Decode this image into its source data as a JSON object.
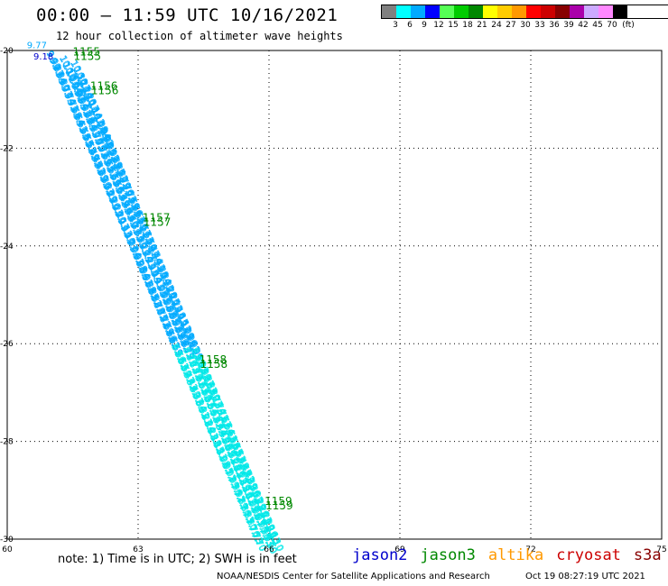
{
  "header": {
    "title": "00:00 – 11:59 UTC 10/16/2021",
    "subtitle": "12 hour collection of altimeter wave heights"
  },
  "legend": {
    "colors": [
      "#808080",
      "#00ffff",
      "#00aaff",
      "#0000ff",
      "#55ff55",
      "#00cc00",
      "#008800",
      "#ffff00",
      "#ffcc00",
      "#ff9900",
      "#ff0000",
      "#cc0000",
      "#880000",
      "#aa00aa",
      "#ccaaff",
      "#ff88ff",
      "#000000"
    ],
    "labels": [
      "3",
      "6",
      "9",
      "12",
      "15",
      "18",
      "21",
      "24",
      "27",
      "30",
      "33",
      "36",
      "39",
      "42",
      "45",
      "70",
      "(ft)"
    ]
  },
  "map": {
    "lon_range": [
      60,
      75
    ],
    "lat_range": [
      -30,
      -20
    ],
    "lon_ticks": [
      "60",
      "63",
      "66",
      "69",
      "72",
      "75"
    ],
    "lat_ticks": [
      "-20",
      "-22",
      "-24",
      "-26",
      "-28",
      "-30"
    ],
    "time_labels": [
      {
        "text": "1155",
        "lon": 61.5,
        "lat": -20.1
      },
      {
        "text": "1156",
        "lon": 61.9,
        "lat": -20.8
      },
      {
        "text": "1157",
        "lon": 63.1,
        "lat": -23.5
      },
      {
        "text": "1158",
        "lon": 64.4,
        "lat": -26.4
      },
      {
        "text": "1159",
        "lon": 65.9,
        "lat": -29.3
      }
    ],
    "track_start_labels": [
      "9.77",
      "9.18"
    ]
  },
  "footer": {
    "note": "note:  1) Time is in UTC;  2) SWH is in feet",
    "missions": [
      {
        "name": "jason2",
        "color": "#0000cc"
      },
      {
        "name": "jason3",
        "color": "#008800"
      },
      {
        "name": "altika",
        "color": "#ff9900"
      },
      {
        "name": "cryosat",
        "color": "#cc0000"
      },
      {
        "name": "s3a",
        "color": "#880000"
      }
    ],
    "credit": "NOAA/NESDIS Center for Satellite Applications and Research",
    "timestamp": "Oct 19 08:27:19 UTC 2021"
  }
}
